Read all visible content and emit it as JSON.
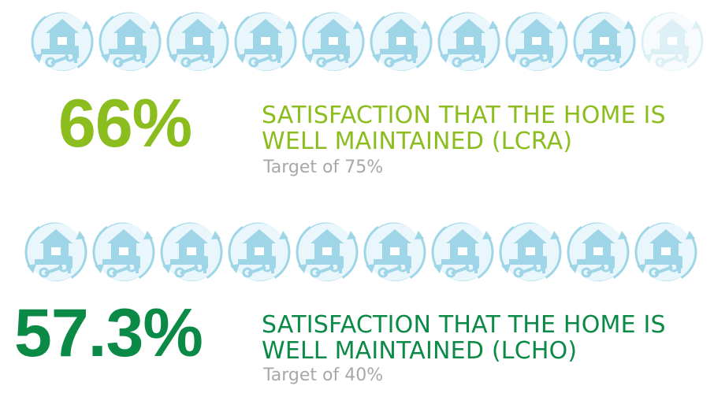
{
  "chart_data": [
    {
      "type": "pictogram",
      "metric_label_line1": "SATISFACTION THAT THE HOME IS",
      "metric_label_line2": "WELL MAINTAINED (LCRA)",
      "value_text": "66%",
      "value": 66,
      "target_text": "Target of 75%",
      "target": 75,
      "icon": "house-repair-icon",
      "icon_count": 10,
      "icons_filled": 9,
      "colors": {
        "value": "#8cbd1f",
        "icon_light": "#9ed6e8",
        "icon_fill": "#e9f6fb"
      }
    },
    {
      "type": "pictogram",
      "metric_label_line1": "SATISFACTION THAT THE HOME IS",
      "metric_label_line2": "WELL MAINTAINED (LCHO)",
      "value_text": "57.3%",
      "value": 57.3,
      "target_text": "Target of 40%",
      "target": 40,
      "icon": "house-repair-icon",
      "icon_count": 10,
      "icons_filled": 10,
      "colors": {
        "value": "#0a8a46",
        "icon_light": "#9ed6e8",
        "icon_fill": "#e9f6fb"
      }
    }
  ]
}
